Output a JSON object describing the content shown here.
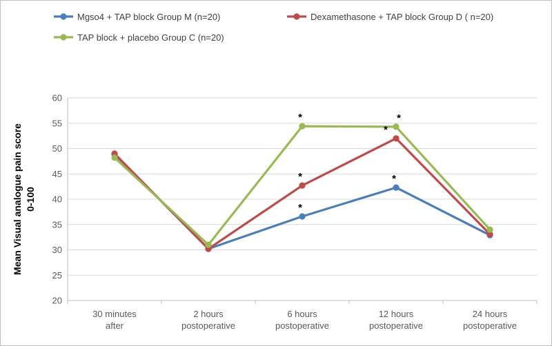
{
  "chart_data": {
    "type": "line",
    "categories": [
      [
        "30 minutes",
        "after"
      ],
      [
        "2 hours",
        "postoperative"
      ],
      [
        "6 hours",
        "postoperative"
      ],
      [
        "12 hours",
        "postoperative"
      ],
      [
        "24 hours",
        "postoperative"
      ]
    ],
    "ylabel": [
      "Mean Visual analogue pain score",
      "0-100"
    ],
    "ylim": [
      20,
      60
    ],
    "yticks": [
      20,
      25,
      30,
      35,
      40,
      45,
      50,
      55,
      60
    ],
    "grid": true,
    "legend_position": "top",
    "series": [
      {
        "name": "Mgso4 + TAP block Group M (n=20)",
        "color": "#4a7ebb",
        "values": [
          48.9,
          30.2,
          36.6,
          42.3,
          32.9
        ],
        "stars": [
          false,
          false,
          true,
          true,
          false
        ]
      },
      {
        "name": "Dexamethasone + TAP block Group D ( n=20)",
        "color": "#be4b48",
        "values": [
          49.0,
          30.2,
          42.7,
          52.0,
          33.1
        ],
        "stars": [
          false,
          false,
          true,
          true,
          false
        ]
      },
      {
        "name": "TAP block + placebo Group C (n=20)",
        "color": "#98b954",
        "values": [
          48.2,
          31.0,
          54.4,
          54.3,
          34.0
        ],
        "stars": [
          false,
          false,
          true,
          true,
          false
        ]
      }
    ],
    "annotation_symbol": "*"
  }
}
